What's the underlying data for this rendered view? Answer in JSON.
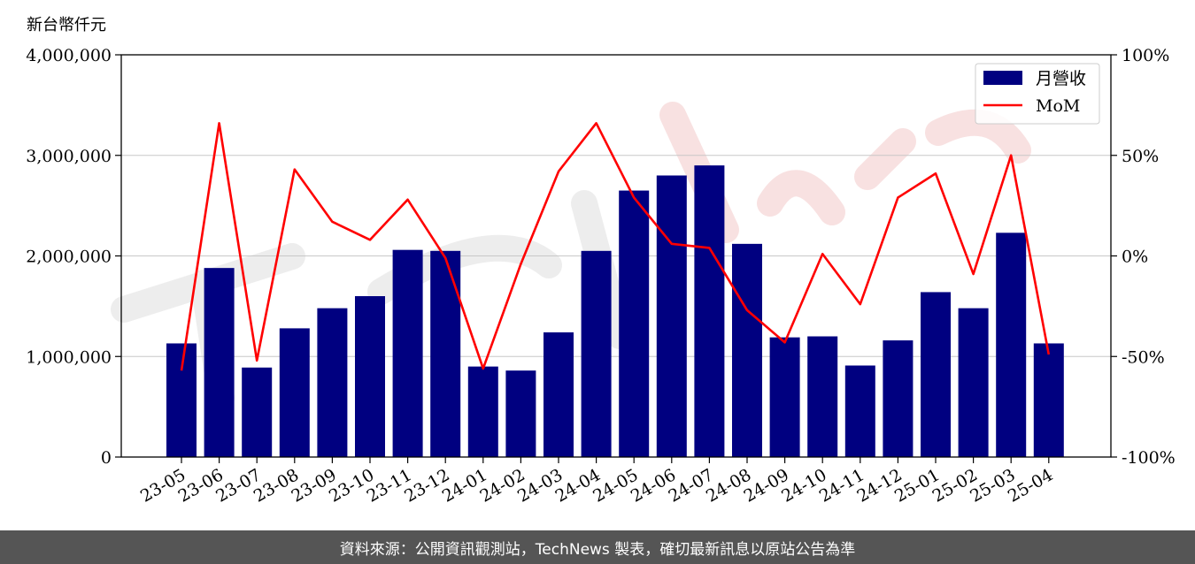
{
  "chart_data": {
    "type": "bar",
    "y_left_label": "新台幣仟元",
    "categories": [
      "23-05",
      "23-06",
      "23-07",
      "23-08",
      "23-09",
      "23-10",
      "23-11",
      "23-12",
      "24-01",
      "24-02",
      "24-03",
      "24-04",
      "24-05",
      "24-06",
      "24-07",
      "24-08",
      "24-09",
      "24-10",
      "24-11",
      "24-12",
      "25-01",
      "25-02",
      "25-03",
      "25-04"
    ],
    "series": [
      {
        "name": "月營收",
        "type": "bar",
        "axis": "left",
        "color": "#000080",
        "values": [
          1130000,
          1880000,
          890000,
          1280000,
          1480000,
          1600000,
          2060000,
          2050000,
          900000,
          860000,
          1240000,
          2050000,
          2650000,
          2800000,
          2900000,
          2120000,
          1190000,
          1200000,
          910000,
          1160000,
          1640000,
          1480000,
          2230000,
          1130000
        ]
      },
      {
        "name": "MoM",
        "type": "line",
        "axis": "right",
        "color": "#ff0000",
        "values": [
          -57,
          66,
          -52,
          43,
          17,
          8,
          28,
          -1,
          -56,
          -4,
          42,
          66,
          29,
          6,
          4,
          -27,
          -43,
          1,
          -24,
          29,
          41,
          -9,
          50,
          -49
        ]
      }
    ],
    "ylim_left": [
      0,
      4000000
    ],
    "ylim_right": [
      -100,
      100
    ],
    "yticks_left": [
      "0",
      "1,000,000",
      "2,000,000",
      "3,000,000",
      "4,000,000"
    ],
    "yticks_right": [
      "-100%",
      "-50%",
      "0%",
      "50%",
      "100%"
    ],
    "grid": "horizontal",
    "legend": "top-right"
  },
  "footer": {
    "source_text": "資料來源：公開資訊觀測站，TechNews 製表，確切最新訊息以原站公告為準"
  }
}
